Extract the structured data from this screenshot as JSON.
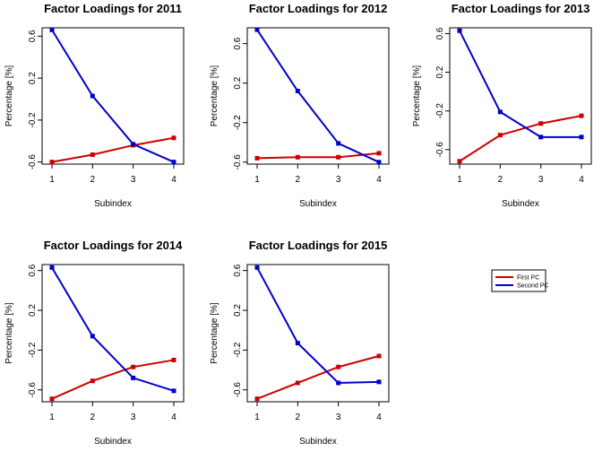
{
  "chart_data": [
    {
      "type": "line",
      "title": "Factor Loadings for 2011",
      "xlabel": "Subindex",
      "ylabel": "Percentage [%]",
      "x": [
        1,
        2,
        3,
        4
      ],
      "xticks": [
        "1",
        "2",
        "3",
        "4"
      ],
      "ylim": [
        -0.62,
        0.68
      ],
      "yticks": [
        "-0.6",
        "-0.2",
        "0.2",
        "0.6"
      ],
      "series": [
        {
          "name": "First PC",
          "color": "#cc0000",
          "values": [
            -0.6,
            -0.53,
            -0.44,
            -0.37
          ]
        },
        {
          "name": "Second PC",
          "color": "#0000cc",
          "values": [
            0.66,
            0.03,
            -0.43,
            -0.6
          ]
        }
      ]
    },
    {
      "type": "line",
      "title": "Factor Loadings for 2012",
      "xlabel": "Subindex",
      "ylabel": "Percentage [%]",
      "x": [
        1,
        2,
        3,
        4
      ],
      "xticks": [
        "1",
        "2",
        "3",
        "4"
      ],
      "ylim": [
        -0.62,
        0.76
      ],
      "yticks": [
        "-0.6",
        "-0.2",
        "0.2",
        "0.6"
      ],
      "series": [
        {
          "name": "First PC",
          "color": "#cc0000",
          "values": [
            -0.56,
            -0.55,
            -0.55,
            -0.51
          ]
        },
        {
          "name": "Second PC",
          "color": "#0000cc",
          "values": [
            0.74,
            0.12,
            -0.41,
            -0.6
          ]
        }
      ]
    },
    {
      "type": "line",
      "title": "Factor Loadings for 2013",
      "xlabel": "Subindex",
      "ylabel": "Percentage [%]",
      "x": [
        1,
        2,
        3,
        4
      ],
      "xticks": [
        "1",
        "2",
        "3",
        "4"
      ],
      "ylim": [
        -0.75,
        0.66
      ],
      "yticks": [
        "-0.6",
        "-0.2",
        "0.2",
        "0.6"
      ],
      "series": [
        {
          "name": "First PC",
          "color": "#cc0000",
          "values": [
            -0.72,
            -0.45,
            -0.33,
            -0.25
          ]
        },
        {
          "name": "Second PC",
          "color": "#0000cc",
          "values": [
            0.63,
            -0.21,
            -0.47,
            -0.47
          ]
        }
      ]
    },
    {
      "type": "line",
      "title": "Factor Loadings for 2014",
      "xlabel": "Subindex",
      "ylabel": "Percentage [%]",
      "x": [
        1,
        2,
        3,
        4
      ],
      "xticks": [
        "1",
        "2",
        "3",
        "4"
      ],
      "ylim": [
        -0.72,
        0.66
      ],
      "yticks": [
        "-0.6",
        "-0.2",
        "0.2",
        "0.6"
      ],
      "series": [
        {
          "name": "First PC",
          "color": "#cc0000",
          "values": [
            -0.69,
            -0.51,
            -0.37,
            -0.3
          ]
        },
        {
          "name": "Second PC",
          "color": "#0000cc",
          "values": [
            0.63,
            -0.06,
            -0.48,
            -0.61
          ]
        }
      ]
    },
    {
      "type": "line",
      "title": "Factor Loadings for 2015",
      "xlabel": "Subindex",
      "ylabel": "Percentage [%]",
      "x": [
        1,
        2,
        3,
        4
      ],
      "xticks": [
        "1",
        "2",
        "3",
        "4"
      ],
      "ylim": [
        -0.72,
        0.66
      ],
      "yticks": [
        "-0.6",
        "-0.2",
        "0.2",
        "0.6"
      ],
      "series": [
        {
          "name": "First PC",
          "color": "#cc0000",
          "values": [
            -0.69,
            -0.53,
            -0.37,
            -0.26
          ]
        },
        {
          "name": "Second PC",
          "color": "#0000cc",
          "values": [
            0.63,
            -0.13,
            -0.53,
            -0.52
          ]
        }
      ]
    }
  ],
  "legend": {
    "items": [
      {
        "label": "First PC",
        "color": "#cc0000"
      },
      {
        "label": "Second PC",
        "color": "#0000cc"
      }
    ]
  }
}
